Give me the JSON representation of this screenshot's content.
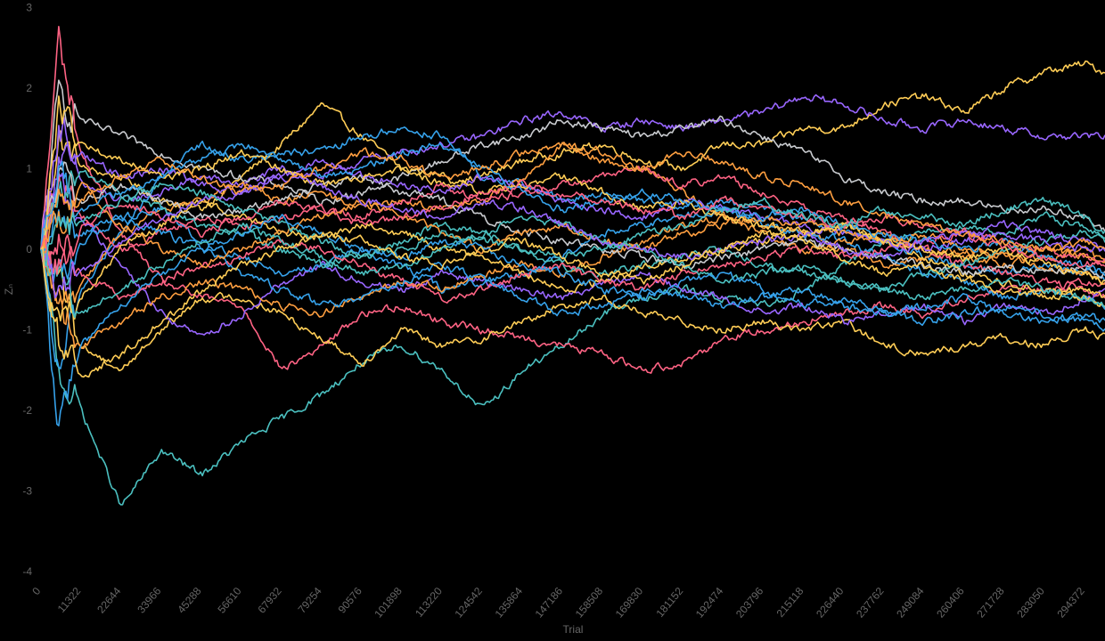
{
  "chart_data": {
    "type": "line",
    "title": "",
    "xlabel": "Trial",
    "ylabel": "Z_n",
    "ylabel_display": "Zₙ",
    "xlim": [
      0,
      300000
    ],
    "ylim": [
      -4,
      3
    ],
    "grid": false,
    "legend": "none",
    "background": "#000000",
    "x_ticks": [
      "0",
      "11322",
      "22644",
      "33966",
      "45288",
      "56610",
      "67932",
      "79254",
      "90576",
      "101898",
      "113220",
      "124542",
      "135864",
      "147186",
      "158508",
      "169830",
      "181152",
      "192474",
      "203796",
      "215118",
      "226440",
      "237762",
      "249084",
      "260406",
      "271728",
      "283050",
      "294372"
    ],
    "y_ticks": [
      "3",
      "2",
      "1",
      "0",
      "-1",
      "-2",
      "-3",
      "-4"
    ],
    "x_anchor_trials": [
      0,
      5000,
      11322,
      22644,
      33966,
      45288,
      56610,
      67932,
      79254,
      90576,
      101898,
      113220,
      124542,
      135864,
      147186,
      158508,
      169830,
      181152,
      192474,
      203796,
      215118,
      226440,
      237762,
      249084,
      260406,
      271728,
      283050,
      294372,
      300000
    ],
    "series": [
      {
        "name": "walk-1",
        "color": "#FFCD56",
        "values": [
          0,
          1.4,
          1.0,
          0.9,
          0.6,
          0.5,
          0.9,
          1.3,
          1.8,
          1.4,
          1.0,
          0.8,
          0.9,
          1.1,
          1.2,
          1.3,
          1.1,
          1.0,
          1.3,
          1.3,
          1.5,
          1.5,
          1.8,
          1.9,
          1.7,
          2.0,
          2.2,
          2.3,
          2.2
        ]
      },
      {
        "name": "walk-2",
        "color": "#9966FF",
        "values": [
          0,
          1.2,
          0.8,
          0.6,
          0.7,
          0.9,
          0.8,
          1.0,
          0.9,
          1.1,
          1.2,
          1.3,
          1.4,
          1.6,
          1.7,
          1.5,
          1.6,
          1.5,
          1.6,
          1.7,
          1.9,
          1.8,
          1.6,
          1.5,
          1.6,
          1.5,
          1.4,
          1.4,
          1.4
        ]
      },
      {
        "name": "walk-3",
        "color": "#C9CBCF",
        "values": [
          0,
          1.9,
          1.6,
          1.4,
          1.2,
          1.0,
          0.9,
          0.8,
          0.6,
          0.7,
          0.9,
          1.1,
          1.3,
          1.4,
          1.6,
          1.5,
          1.4,
          1.5,
          1.6,
          1.4,
          1.2,
          0.9,
          0.7,
          0.6,
          0.6,
          0.5,
          0.5,
          0.4,
          0.2
        ]
      },
      {
        "name": "walk-4",
        "color": "#4BC0C0",
        "values": [
          0,
          -1.5,
          -2.0,
          -3.2,
          -2.5,
          -2.8,
          -2.4,
          -2.1,
          -1.8,
          -1.4,
          -1.2,
          -1.5,
          -2.0,
          -1.5,
          -1.2,
          -0.8,
          -0.6,
          -0.5,
          -0.6,
          -0.7,
          -0.5,
          -0.2,
          0.1,
          0.2,
          0.3,
          0.2,
          0.4,
          0.3,
          0.1
        ]
      },
      {
        "name": "walk-5",
        "color": "#FF6384",
        "values": [
          0,
          2.6,
          1.2,
          0.2,
          -0.4,
          -0.6,
          -0.7,
          -1.5,
          -1.2,
          -0.8,
          -0.7,
          -0.9,
          -1.0,
          -1.1,
          -1.2,
          -1.3,
          -1.5,
          -1.4,
          -1.1,
          -1.0,
          -0.9,
          -0.8,
          -0.7,
          -0.8,
          -0.6,
          -0.5,
          -0.5,
          -0.4,
          -0.4
        ]
      },
      {
        "name": "walk-6",
        "color": "#FFCD56",
        "values": [
          0,
          -0.4,
          -1.2,
          -1.5,
          -1.0,
          -0.6,
          -0.6,
          -0.8,
          -1.1,
          -1.4,
          -1.0,
          -1.2,
          -1.1,
          -0.9,
          -0.7,
          -0.6,
          -0.8,
          -0.9,
          -1.0,
          -0.9,
          -1.0,
          -0.9,
          -1.2,
          -1.3,
          -1.2,
          -1.1,
          -1.2,
          -1.0,
          -1.1
        ]
      },
      {
        "name": "walk-7",
        "color": "#36A2EB",
        "values": [
          0,
          -1.6,
          -0.5,
          0.2,
          0.9,
          1.3,
          1.1,
          1.2,
          1.2,
          1.4,
          1.5,
          1.4,
          0.9,
          0.8,
          0.6,
          0.7,
          0.6,
          0.5,
          0.6,
          0.5,
          0.4,
          0.2,
          0.1,
          -0.1,
          -0.2,
          -0.3,
          -0.2,
          -0.3,
          -0.4
        ]
      },
      {
        "name": "walk-8",
        "color": "#FF9F40",
        "values": [
          0,
          -0.8,
          -0.4,
          0.2,
          0.5,
          0.6,
          0.8,
          0.6,
          0.7,
          0.5,
          0.6,
          0.5,
          0.6,
          0.9,
          1.3,
          1.2,
          1.0,
          0.7,
          0.4,
          0.3,
          0.2,
          0.0,
          -0.2,
          -0.1,
          0.0,
          -0.1,
          -0.2,
          -0.3,
          -0.4
        ]
      },
      {
        "name": "walk-9",
        "color": "#FF6384",
        "values": [
          0,
          1.0,
          0.4,
          0.0,
          0.2,
          0.4,
          0.3,
          0.4,
          0.5,
          0.4,
          0.6,
          0.8,
          0.6,
          0.7,
          0.8,
          0.9,
          1.0,
          0.8,
          0.9,
          0.7,
          0.5,
          0.4,
          0.2,
          0.0,
          -0.2,
          -0.3,
          -0.4,
          -0.5,
          -0.6
        ]
      },
      {
        "name": "walk-10",
        "color": "#9966FF",
        "values": [
          0,
          0.8,
          0.4,
          -0.2,
          -0.8,
          -1.1,
          -0.8,
          -0.4,
          -0.2,
          -0.4,
          -0.5,
          -0.3,
          -0.4,
          -0.5,
          -0.6,
          -0.4,
          -0.3,
          -0.5,
          -0.6,
          -0.8,
          -0.7,
          -0.9,
          -0.8,
          -0.7,
          -0.9,
          -0.7,
          -0.8,
          -0.6,
          -0.5
        ]
      },
      {
        "name": "walk-11",
        "color": "#36A2EB",
        "values": [
          0,
          0.4,
          0.2,
          0.4,
          0.5,
          0.1,
          -0.1,
          -0.3,
          -0.2,
          0.0,
          -0.2,
          -0.5,
          -0.4,
          -0.3,
          -0.1,
          0.2,
          0.3,
          0.4,
          0.5,
          0.3,
          0.2,
          0.1,
          -0.1,
          -0.3,
          -0.4,
          -0.6,
          -0.5,
          -0.6,
          -0.7
        ]
      },
      {
        "name": "walk-12",
        "color": "#FF9F40",
        "values": [
          0,
          -0.6,
          -1.2,
          -0.9,
          -0.6,
          -0.4,
          -0.5,
          -0.7,
          -0.8,
          -0.6,
          -0.4,
          -0.5,
          -0.3,
          -0.2,
          -0.3,
          -0.1,
          0.1,
          0.3,
          0.4,
          0.2,
          0.0,
          0.1,
          0.2,
          0.0,
          -0.1,
          -0.2,
          -0.1,
          0.0,
          -0.2
        ]
      },
      {
        "name": "walk-13",
        "color": "#4BC0C0",
        "values": [
          0,
          0.6,
          1.0,
          0.7,
          0.5,
          0.3,
          0.2,
          0.0,
          -0.2,
          -0.1,
          0.1,
          0.3,
          0.2,
          0.0,
          -0.2,
          -0.3,
          -0.2,
          -0.1,
          0.0,
          -0.2,
          -0.3,
          -0.4,
          -0.5,
          -0.3,
          -0.2,
          0.0,
          0.1,
          0.2,
          0.1
        ]
      },
      {
        "name": "walk-14",
        "color": "#FFCD56",
        "values": [
          0,
          -1.0,
          -0.6,
          0.0,
          0.3,
          0.6,
          0.4,
          0.2,
          0.1,
          0.3,
          0.2,
          0.0,
          -0.1,
          -0.3,
          -0.5,
          -0.4,
          -0.2,
          -0.1,
          0.0,
          0.1,
          0.2,
          0.3,
          0.1,
          -0.1,
          -0.3,
          -0.4,
          -0.5,
          -0.6,
          -0.7
        ]
      },
      {
        "name": "walk-15",
        "color": "#C9CBCF",
        "values": [
          0,
          0.9,
          0.6,
          0.8,
          0.6,
          0.4,
          0.5,
          0.6,
          0.8,
          0.9,
          0.7,
          0.6,
          0.4,
          0.2,
          0.1,
          0.0,
          -0.1,
          -0.2,
          -0.1,
          0.0,
          0.1,
          0.0,
          -0.1,
          -0.2,
          -0.3,
          -0.2,
          -0.3,
          -0.2,
          -0.3
        ]
      },
      {
        "name": "walk-16",
        "color": "#FF6384",
        "values": [
          0,
          0.2,
          -0.3,
          -0.6,
          -0.4,
          -0.2,
          -0.1,
          0.1,
          0.0,
          -0.2,
          -0.4,
          -0.6,
          -0.5,
          -0.3,
          -0.2,
          -0.4,
          -0.5,
          -0.3,
          -0.2,
          -0.1,
          0.0,
          -0.1,
          0.0,
          0.1,
          0.2,
          0.1,
          0.0,
          -0.1,
          -0.2
        ]
      },
      {
        "name": "walk-17",
        "color": "#36A2EB",
        "values": [
          0,
          -0.3,
          0.1,
          0.4,
          0.2,
          0.0,
          -0.3,
          -0.5,
          -0.7,
          -0.6,
          -0.4,
          -0.2,
          -0.4,
          -0.6,
          -0.8,
          -0.7,
          -0.5,
          -0.6,
          -0.7,
          -0.6,
          -0.5,
          -0.7,
          -0.8,
          -0.9,
          -0.8,
          -0.7,
          -0.8,
          -0.9,
          -1.0
        ]
      },
      {
        "name": "walk-18",
        "color": "#9966FF",
        "values": [
          0,
          1.5,
          1.2,
          0.9,
          1.0,
          0.8,
          0.7,
          0.9,
          1.1,
          0.9,
          0.8,
          0.7,
          0.9,
          0.8,
          0.6,
          0.5,
          0.4,
          0.6,
          0.5,
          0.4,
          0.3,
          0.2,
          0.1,
          0.0,
          0.1,
          0.2,
          0.1,
          0.0,
          0.0
        ]
      },
      {
        "name": "walk-19",
        "color": "#FF9F40",
        "values": [
          0,
          0.5,
          0.8,
          0.3,
          0.0,
          -0.2,
          0.0,
          0.2,
          0.4,
          0.6,
          0.4,
          0.2,
          0.0,
          0.2,
          0.3,
          0.1,
          0.0,
          0.2,
          0.3,
          0.4,
          0.3,
          0.2,
          0.1,
          0.2,
          0.0,
          -0.1,
          0.0,
          -0.1,
          -0.2
        ]
      },
      {
        "name": "walk-20",
        "color": "#4BC0C0",
        "values": [
          0,
          -0.4,
          -0.8,
          -0.5,
          -0.2,
          0.1,
          0.3,
          0.1,
          -0.1,
          -0.3,
          -0.2,
          0.0,
          0.2,
          0.4,
          0.3,
          0.1,
          0.0,
          -0.2,
          -0.4,
          -0.3,
          -0.2,
          -0.4,
          -0.5,
          -0.6,
          -0.5,
          -0.4,
          -0.5,
          -0.6,
          -0.7
        ]
      },
      {
        "name": "walk-21",
        "color": "#FFCD56",
        "values": [
          0,
          1.7,
          1.3,
          1.1,
          0.9,
          1.0,
          1.2,
          1.0,
          0.8,
          0.9,
          1.0,
          0.9,
          0.7,
          0.8,
          0.9,
          0.7,
          0.5,
          0.6,
          0.4,
          0.3,
          0.2,
          0.3,
          0.1,
          0.0,
          -0.1,
          0.0,
          -0.2,
          -0.3,
          -0.4
        ]
      },
      {
        "name": "walk-22",
        "color": "#36A2EB",
        "values": [
          0,
          0.9,
          0.5,
          0.7,
          0.9,
          1.1,
          1.3,
          1.1,
          0.9,
          1.0,
          1.2,
          1.3,
          1.0,
          0.7,
          0.5,
          0.6,
          0.7,
          0.6,
          0.5,
          0.4,
          0.5,
          0.3,
          0.2,
          0.1,
          0.0,
          0.1,
          -0.1,
          -0.2,
          -0.3
        ]
      },
      {
        "name": "walk-23",
        "color": "#FF6384",
        "values": [
          0,
          -0.2,
          0.3,
          0.6,
          0.4,
          0.2,
          0.4,
          0.6,
          0.5,
          0.3,
          0.4,
          0.5,
          0.7,
          0.8,
          0.7,
          0.6,
          0.5,
          0.4,
          0.6,
          0.5,
          0.4,
          0.3,
          0.4,
          0.3,
          0.2,
          0.0,
          -0.1,
          -0.2,
          -0.1
        ]
      },
      {
        "name": "walk-24",
        "color": "#9966FF",
        "values": [
          0,
          -0.6,
          -0.3,
          0.1,
          0.4,
          0.6,
          0.7,
          0.9,
          0.8,
          0.6,
          0.5,
          0.4,
          0.6,
          0.5,
          0.3,
          0.1,
          0.0,
          -0.1,
          0.0,
          0.1,
          0.2,
          0.0,
          -0.1,
          0.1,
          0.2,
          0.3,
          0.2,
          0.1,
          0.0
        ]
      },
      {
        "name": "walk-25",
        "color": "#FF9F40",
        "values": [
          0,
          0.3,
          0.6,
          0.9,
          1.1,
          0.9,
          0.7,
          0.8,
          1.0,
          1.2,
          1.1,
          0.9,
          1.0,
          1.2,
          1.3,
          1.1,
          1.0,
          1.2,
          1.1,
          0.9,
          0.8,
          0.6,
          0.4,
          0.3,
          0.2,
          0.1,
          0.0,
          0.1,
          0.0
        ]
      },
      {
        "name": "walk-26",
        "color": "#4BC0C0",
        "values": [
          0,
          0.1,
          0.3,
          0.6,
          0.8,
          0.7,
          0.5,
          0.3,
          0.1,
          -0.1,
          0.0,
          0.2,
          0.1,
          0.0,
          -0.1,
          0.0,
          0.2,
          0.3,
          0.5,
          0.6,
          0.4,
          0.3,
          0.5,
          0.4,
          0.3,
          0.5,
          0.6,
          0.4,
          0.2
        ]
      },
      {
        "name": "walk-27",
        "color": "#36A2EB",
        "values": [
          0,
          -2.3,
          -1.2,
          -0.7,
          -0.3,
          0.0,
          0.2,
          0.4,
          0.2,
          0.0,
          -0.1,
          0.1,
          0.0,
          -0.2,
          -0.3,
          -0.5,
          -0.6,
          -0.4,
          -0.3,
          -0.5,
          -0.7,
          -0.6,
          -0.8,
          -0.7,
          -0.6,
          -0.8,
          -0.9,
          -0.8,
          -0.9
        ]
      },
      {
        "name": "walk-28",
        "color": "#FFCD56",
        "values": [
          0,
          -1.1,
          -1.6,
          -1.3,
          -0.9,
          -0.5,
          -0.2,
          0.0,
          0.2,
          0.1,
          -0.1,
          -0.2,
          0.0,
          0.1,
          -0.1,
          -0.3,
          -0.4,
          -0.2,
          0.0,
          0.2,
          0.1,
          -0.1,
          -0.3,
          -0.2,
          -0.4,
          -0.5,
          -0.6,
          -0.5,
          -0.6
        ]
      }
    ]
  }
}
